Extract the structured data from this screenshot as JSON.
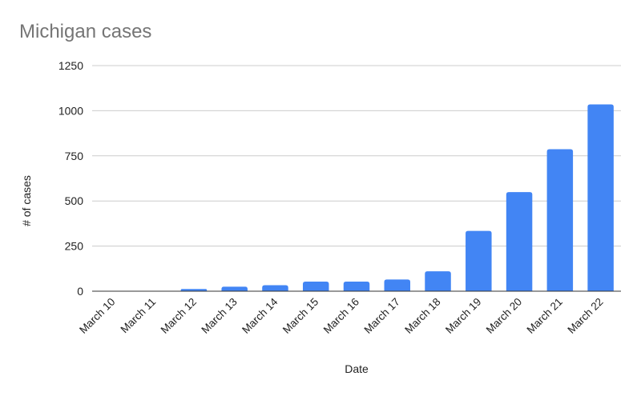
{
  "chart_data": {
    "type": "bar",
    "title": "Michigan cases",
    "xlabel": "Date",
    "ylabel": "# of cases",
    "categories": [
      "March 10",
      "March 11",
      "March 12",
      "March 13",
      "March 14",
      "March 15",
      "March 16",
      "March 17",
      "March 18",
      "March 19",
      "March 20",
      "March 21",
      "March 22"
    ],
    "values": [
      2,
      2,
      12,
      25,
      33,
      53,
      53,
      65,
      110,
      334,
      549,
      787,
      1035
    ],
    "ylim": [
      0,
      1250
    ],
    "yticks": [
      "0",
      "250",
      "500",
      "750",
      "1000",
      "1250"
    ],
    "grid": true,
    "legend": "none",
    "bar_color": "#4285f4"
  }
}
